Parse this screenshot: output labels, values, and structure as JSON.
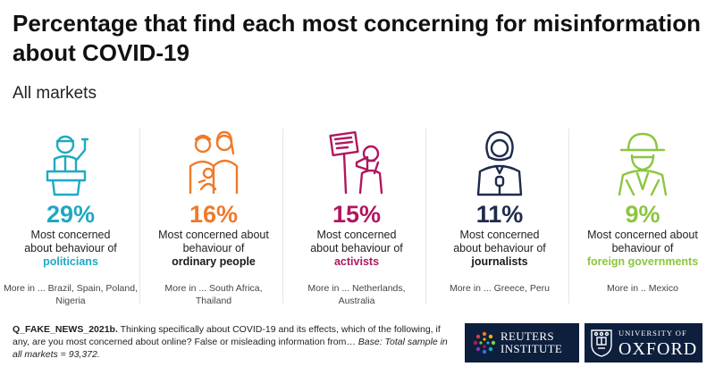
{
  "title": "Percentage that find each most concerning for misinformation about COVID-19",
  "subtitle": "All markets",
  "colors": {
    "politicians": "#1fa9c2",
    "ordinary_people": "#f07a2a",
    "activists": "#b0175f",
    "journalists": "#1f2a4d",
    "foreign_governments": "#8cc63f",
    "logo_background": "#0d1f3c"
  },
  "chart_data": {
    "type": "table",
    "title": "Percentage that find each most concerning for misinformation about COVID-19",
    "subtitle": "All markets",
    "unit": "%",
    "rows": [
      {
        "group": "politicians",
        "value": 29,
        "value_label": "29%",
        "line1": "Most concerned",
        "line2": "about behaviour of",
        "more": "More in ... Brazil, Spain, Poland, Nigeria",
        "icon": "politician-at-podium-icon"
      },
      {
        "group": "ordinary people",
        "value": 16,
        "value_label": "16%",
        "line1": "Most concerned about",
        "line2": "behaviour of",
        "more": "More in ... South Africa, Thailand",
        "icon": "family-icon"
      },
      {
        "group": "activists",
        "value": 15,
        "value_label": "15%",
        "line1": "Most concerned",
        "line2": "about behaviour of",
        "more": "More in ... Netherlands, Australia",
        "icon": "protester-megaphone-icon"
      },
      {
        "group": "journalists",
        "value": 11,
        "value_label": "11%",
        "line1": "Most concerned",
        "line2": "about behaviour of",
        "more": "More in ... Greece, Peru",
        "icon": "journalist-microphone-icon"
      },
      {
        "group": "foreign governments",
        "value": 9,
        "value_label": "9%",
        "line1": "Most concerned about",
        "line2": "behaviour of",
        "more": "More in .. Mexico",
        "icon": "spy-icon"
      }
    ]
  },
  "footnote": {
    "code": "Q_FAKE_NEWS_2021b.",
    "question": " Thinking specifically about COVID-19 and its effects, which of the following, if any, are you most concerned about online? False or misleading information from… ",
    "base": "Base: Total sample in all markets = 93,372."
  },
  "logos": {
    "reuters_line1": "REUTERS",
    "reuters_line2": "INSTITUTE",
    "oxford_small": "UNIVERSITY OF",
    "oxford_big": "OXFORD"
  }
}
